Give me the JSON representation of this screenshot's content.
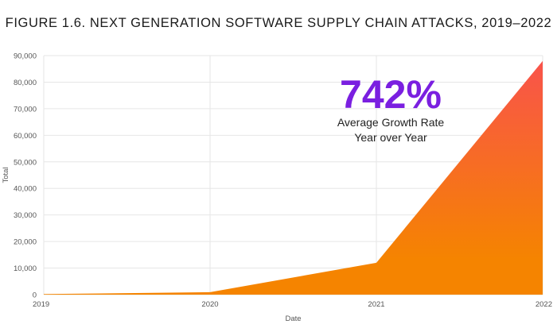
{
  "chart_data": {
    "type": "area",
    "title": "FIGURE 1.6. NEXT GENERATION SOFTWARE SUPPLY CHAIN ATTACKS, 2019–2022",
    "xlabel": "Date",
    "ylabel": "Total",
    "x": [
      "2019",
      "2020",
      "2021",
      "2022"
    ],
    "series": [
      {
        "values": [
          216,
          929,
          12000,
          88000
        ]
      }
    ],
    "ylim": [
      0,
      90000
    ],
    "yticks": [
      "0",
      "10,000",
      "20,000",
      "30,000",
      "40,000",
      "50,000",
      "60,000",
      "70,000",
      "80,000",
      "90,000"
    ],
    "grid": true,
    "legend": "none",
    "annotation": {
      "value": "742%",
      "line1": "Average Growth Rate",
      "line2": "Year over Year"
    },
    "colors": {
      "fill_top": "#f9534b",
      "fill_bottom": "#f58400",
      "annotation": "#7a1fe0"
    }
  }
}
